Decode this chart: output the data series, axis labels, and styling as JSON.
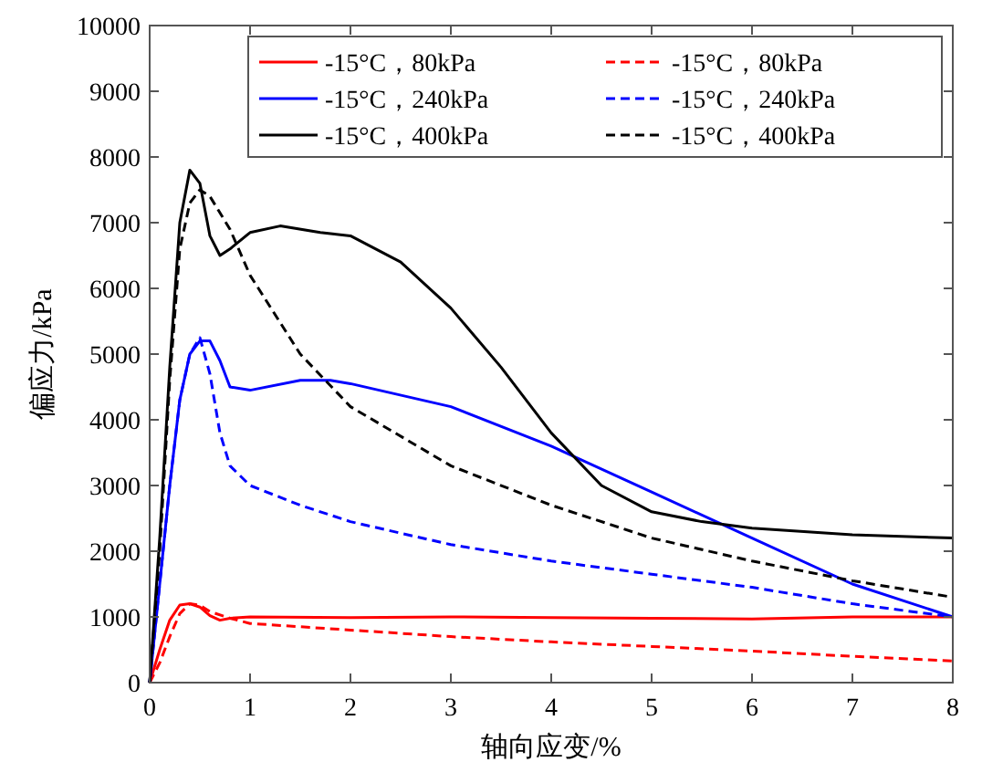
{
  "chart_data": {
    "type": "line",
    "xlabel": "轴向应变/%",
    "ylabel": "偏应力/kPa",
    "xlim": [
      0,
      8
    ],
    "ylim": [
      0,
      10000
    ],
    "xticks": [
      0,
      1,
      2,
      3,
      4,
      5,
      6,
      7,
      8
    ],
    "yticks": [
      0,
      1000,
      2000,
      3000,
      4000,
      5000,
      6000,
      7000,
      8000,
      9000,
      10000
    ],
    "grid": false,
    "legend": "top right",
    "series": [
      {
        "name": "-15°C，80kPa",
        "color": "#ff0000",
        "line_style": "solid",
        "x": [
          0,
          0.1,
          0.2,
          0.3,
          0.4,
          0.5,
          0.6,
          0.7,
          0.8,
          1,
          2,
          3,
          4,
          5,
          6,
          7,
          8
        ],
        "values": [
          0,
          500,
          950,
          1180,
          1200,
          1150,
          1020,
          950,
          980,
          1000,
          990,
          1000,
          990,
          980,
          970,
          1000,
          1000
        ]
      },
      {
        "name": "-15°C，80kPa",
        "color": "#ff0000",
        "line_style": "dashed",
        "x": [
          0,
          0.1,
          0.2,
          0.3,
          0.4,
          0.5,
          0.6,
          0.8,
          1,
          2,
          3,
          4,
          5,
          6,
          7,
          8
        ],
        "values": [
          0,
          300,
          700,
          1050,
          1200,
          1180,
          1080,
          980,
          900,
          800,
          700,
          620,
          550,
          480,
          400,
          330
        ]
      },
      {
        "name": "-15°C，240kPa",
        "color": "#0000ff",
        "line_style": "solid",
        "x": [
          0,
          0.1,
          0.2,
          0.3,
          0.4,
          0.5,
          0.6,
          0.7,
          0.8,
          1,
          1.5,
          1.8,
          2,
          3,
          4,
          5,
          6,
          7,
          8
        ],
        "values": [
          0,
          1500,
          3000,
          4300,
          5000,
          5200,
          5200,
          4900,
          4500,
          4450,
          4600,
          4600,
          4550,
          4200,
          3600,
          2900,
          2200,
          1500,
          1000
        ]
      },
      {
        "name": "-15°C，240kPa",
        "color": "#0000ff",
        "line_style": "dashed",
        "x": [
          0,
          0.1,
          0.2,
          0.3,
          0.4,
          0.5,
          0.6,
          0.7,
          0.8,
          1,
          1.5,
          2,
          3,
          4,
          5,
          6,
          7,
          8
        ],
        "values": [
          0,
          1500,
          3000,
          4300,
          5000,
          5250,
          4700,
          3800,
          3300,
          3000,
          2700,
          2450,
          2100,
          1850,
          1650,
          1450,
          1200,
          1000
        ]
      },
      {
        "name": "-15°C，400kPa",
        "color": "#000000",
        "line_style": "solid",
        "x": [
          0,
          0.1,
          0.2,
          0.3,
          0.4,
          0.5,
          0.6,
          0.7,
          0.8,
          1,
          1.3,
          1.7,
          2,
          2.5,
          3,
          3.5,
          4,
          4.5,
          5,
          5.5,
          6,
          7,
          8
        ],
        "values": [
          0,
          2200,
          4800,
          7000,
          7800,
          7600,
          6800,
          6500,
          6600,
          6850,
          6950,
          6850,
          6800,
          6400,
          5700,
          4800,
          3800,
          3000,
          2600,
          2450,
          2350,
          2250,
          2200
        ]
      },
      {
        "name": "-15°C，400kPa",
        "color": "#000000",
        "line_style": "dashed",
        "x": [
          0,
          0.1,
          0.2,
          0.3,
          0.4,
          0.5,
          0.6,
          0.8,
          1,
          1.5,
          2,
          3,
          4,
          5,
          6,
          7,
          8
        ],
        "values": [
          0,
          2000,
          4600,
          6600,
          7300,
          7500,
          7400,
          6900,
          6200,
          5000,
          4200,
          3300,
          2700,
          2200,
          1850,
          1550,
          1300
        ]
      }
    ]
  }
}
